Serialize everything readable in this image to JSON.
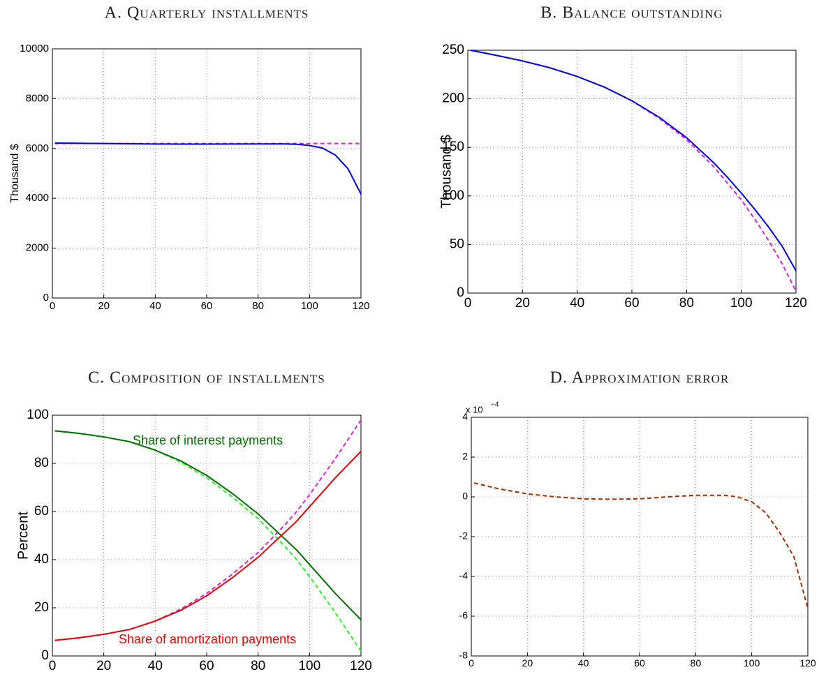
{
  "chart_data": [
    {
      "type": "line",
      "title": "A. Quarterly installments",
      "y_label": "Thousand $",
      "x": [
        1,
        10,
        20,
        30,
        40,
        50,
        60,
        70,
        80,
        90,
        95,
        100,
        105,
        110,
        115,
        120
      ],
      "series": [
        {
          "color": "#e020e0",
          "dashed": true,
          "values": [
            6200,
            6200,
            6200,
            6200,
            6200,
            6200,
            6200,
            6200,
            6200,
            6200,
            6200,
            6200,
            6200,
            6200,
            6200,
            6200
          ]
        },
        {
          "color": "#0000e0",
          "dashed": false,
          "values": [
            6220,
            6210,
            6200,
            6190,
            6180,
            6175,
            6175,
            6180,
            6185,
            6185,
            6170,
            6120,
            6020,
            5740,
            5180,
            4170
          ]
        }
      ],
      "xlim": [
        0,
        120
      ],
      "xticks": [
        0,
        20,
        40,
        60,
        80,
        100,
        120
      ],
      "ylim": [
        0,
        10000
      ],
      "yticks": [
        0,
        2000,
        4000,
        6000,
        8000,
        10000
      ],
      "grid": true
    },
    {
      "type": "line",
      "title": "B. Balance outstanding",
      "y_label": "Thousand $",
      "x": [
        1,
        10,
        20,
        30,
        40,
        50,
        60,
        70,
        80,
        90,
        95,
        100,
        105,
        110,
        115,
        120
      ],
      "series": [
        {
          "color": "#e020e0",
          "dashed": true,
          "values": [
            250,
            245,
            239,
            232,
            223,
            212,
            198,
            180,
            158,
            130,
            113,
            96,
            76,
            54,
            30,
            2
          ]
        },
        {
          "color": "#0000e0",
          "dashed": false,
          "values": [
            250,
            245,
            239,
            232,
            223,
            212,
            198,
            181,
            160,
            134,
            119,
            103,
            86,
            68,
            48,
            23
          ]
        }
      ],
      "xlim": [
        0,
        120
      ],
      "xticks": [
        0,
        20,
        40,
        60,
        80,
        100,
        120
      ],
      "ylim": [
        0,
        250
      ],
      "yticks": [
        0,
        50,
        100,
        150,
        200,
        250
      ],
      "grid": true
    },
    {
      "type": "line",
      "title": "C. Composition of installments",
      "y_label": "Percent",
      "annotations": [
        "Share of interest payments",
        "Share of amortization payments"
      ],
      "x": [
        1,
        10,
        20,
        30,
        40,
        50,
        60,
        70,
        80,
        90,
        95,
        100,
        105,
        110,
        115,
        120
      ],
      "series": [
        {
          "color": "#33ee33",
          "dashed": true,
          "values": [
            93.5,
            92.5,
            91,
            89,
            85.5,
            80.5,
            74,
            66,
            57,
            46,
            40,
            33,
            25.5,
            18,
            10,
            2
          ]
        },
        {
          "color": "#e020e0",
          "dashed": true,
          "values": [
            6.5,
            7.5,
            9,
            11,
            14.5,
            19.5,
            26,
            34,
            43,
            54,
            60,
            67,
            74.5,
            82,
            90,
            98
          ]
        },
        {
          "color": "#007000",
          "dashed": false,
          "values": [
            93.5,
            92.5,
            91,
            89,
            85.5,
            81,
            75,
            67.5,
            59,
            49,
            44,
            38,
            32,
            26,
            20.5,
            15
          ]
        },
        {
          "color": "#ee0000",
          "dashed": false,
          "values": [
            6.5,
            7.5,
            9,
            11,
            14.5,
            19,
            25,
            32.5,
            41,
            51,
            56,
            62,
            68,
            74,
            79.5,
            85
          ]
        }
      ],
      "xlim": [
        0,
        120
      ],
      "xticks": [
        0,
        20,
        40,
        60,
        80,
        100,
        120
      ],
      "ylim": [
        0,
        100
      ],
      "yticks": [
        0,
        20,
        40,
        60,
        80,
        100
      ],
      "grid": true
    },
    {
      "type": "line",
      "title": "D. Approximation error",
      "y_multiplier": "x 10",
      "y_multiplier_exponent": "−4",
      "x": [
        1,
        10,
        20,
        30,
        40,
        50,
        60,
        70,
        80,
        90,
        95,
        100,
        105,
        110,
        115,
        120
      ],
      "series": [
        {
          "color": "#a03000",
          "dashed": true,
          "values": [
            0.7,
            0.4,
            0.15,
            0,
            -0.1,
            -0.12,
            -0.1,
            0,
            0.08,
            0.08,
            0,
            -0.25,
            -0.8,
            -1.8,
            -3,
            -5.6
          ]
        }
      ],
      "xlim": [
        0,
        120
      ],
      "xticks": [
        0,
        20,
        40,
        60,
        80,
        100,
        120
      ],
      "ylim": [
        -8,
        4
      ],
      "yticks": [
        -8,
        -6,
        -4,
        -2,
        0,
        2,
        4
      ],
      "grid": true
    }
  ]
}
